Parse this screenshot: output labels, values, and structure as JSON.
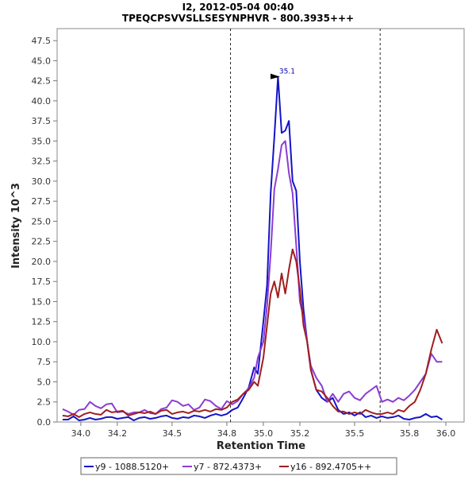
{
  "chart_data": {
    "type": "line",
    "title": "I2, 2012-05-04 00:40",
    "subtitle": "TPEQCPSVVSLLSESYNPHVR - 800.3935+++",
    "xlabel": "Retention Time",
    "ylabel": "Intensity 10^3",
    "xlim": [
      33.87,
      36.1
    ],
    "ylim": [
      0,
      49
    ],
    "xticks": [
      34.0,
      34.2,
      34.5,
      34.8,
      35.0,
      35.2,
      35.5,
      35.8,
      36.0
    ],
    "xtick_labels": [
      "34.0",
      "34.2",
      "34.5",
      "34.8",
      "35.0",
      "35.2",
      "35.5",
      "35.8",
      "36.0"
    ],
    "yticks": [
      0,
      2.5,
      5,
      7.5,
      10,
      12.5,
      15,
      17.5,
      20,
      22.5,
      25,
      27.5,
      30,
      32.5,
      35,
      37.5,
      40,
      42.5,
      45,
      47.5
    ],
    "ytick_labels": [
      "0.0",
      "2.5",
      "5.0",
      "7.5",
      "10.0",
      "12.5",
      "15.0",
      "17.5",
      "20.0",
      "22.5",
      "25.0",
      "27.5",
      "30.0",
      "32.5",
      "35.0",
      "37.5",
      "40.0",
      "42.5",
      "45.0",
      "47.5"
    ],
    "boundaries": [
      34.82,
      35.64
    ],
    "peak_annotation": {
      "x": 35.1,
      "y": 43.0,
      "text": "35.1"
    },
    "series": [
      {
        "name": "y9 - 1088.5120+",
        "color": "#1414c8",
        "x": [
          33.9,
          33.93,
          33.96,
          33.99,
          34.02,
          34.05,
          34.08,
          34.11,
          34.14,
          34.17,
          34.2,
          34.23,
          34.26,
          34.29,
          34.32,
          34.35,
          34.38,
          34.41,
          34.44,
          34.47,
          34.5,
          34.53,
          34.56,
          34.59,
          34.62,
          34.65,
          34.68,
          34.71,
          34.74,
          34.77,
          34.8,
          34.83,
          34.86,
          34.89,
          34.92,
          34.95,
          34.97,
          35.0,
          35.02,
          35.04,
          35.06,
          35.08,
          35.1,
          35.12,
          35.14,
          35.16,
          35.18,
          35.2,
          35.22,
          35.24,
          35.26,
          35.29,
          35.32,
          35.35,
          35.38,
          35.41,
          35.44,
          35.47,
          35.5,
          35.53,
          35.56,
          35.59,
          35.62,
          35.65,
          35.68,
          35.71,
          35.74,
          35.77,
          35.8,
          35.83,
          35.86,
          35.89,
          35.92,
          35.95,
          35.98
        ],
        "values": [
          0.3,
          0.3,
          0.7,
          0.2,
          0.3,
          0.5,
          0.3,
          0.4,
          0.6,
          0.6,
          0.4,
          0.5,
          0.6,
          0.2,
          0.5,
          0.6,
          0.4,
          0.5,
          0.7,
          0.8,
          0.5,
          0.4,
          0.6,
          0.5,
          0.8,
          0.7,
          0.5,
          0.8,
          1.0,
          0.8,
          1.0,
          1.5,
          1.8,
          3.0,
          4.3,
          6.8,
          6.0,
          12.5,
          17.0,
          28.5,
          35.5,
          43.0,
          36.0,
          36.3,
          37.5,
          30.0,
          28.8,
          20.0,
          14.0,
          10.0,
          6.5,
          4.0,
          3.0,
          2.5,
          3.0,
          1.5,
          1.0,
          1.2,
          0.8,
          1.2,
          0.6,
          0.8,
          0.5,
          0.7,
          0.5,
          0.6,
          0.8,
          0.4,
          0.3,
          0.5,
          0.6,
          1.0,
          0.6,
          0.7,
          0.3
        ]
      },
      {
        "name": "y7 - 872.4373+",
        "color": "#8c3cd2",
        "x": [
          33.9,
          33.93,
          33.96,
          33.99,
          34.02,
          34.05,
          34.08,
          34.11,
          34.14,
          34.17,
          34.2,
          34.23,
          34.26,
          34.29,
          34.32,
          34.35,
          34.38,
          34.41,
          34.44,
          34.47,
          34.5,
          34.53,
          34.56,
          34.59,
          34.62,
          34.65,
          34.68,
          34.71,
          34.74,
          34.77,
          34.8,
          34.83,
          34.86,
          34.89,
          34.92,
          34.95,
          34.97,
          35.0,
          35.02,
          35.04,
          35.06,
          35.08,
          35.1,
          35.12,
          35.14,
          35.16,
          35.18,
          35.2,
          35.22,
          35.24,
          35.26,
          35.29,
          35.32,
          35.35,
          35.38,
          35.41,
          35.44,
          35.47,
          35.5,
          35.53,
          35.56,
          35.59,
          35.62,
          35.65,
          35.68,
          35.71,
          35.74,
          35.77,
          35.8,
          35.83,
          35.86,
          35.89,
          35.92,
          35.95,
          35.98
        ],
        "values": [
          1.6,
          1.3,
          0.9,
          1.5,
          1.6,
          2.5,
          2.0,
          1.7,
          2.2,
          2.3,
          1.2,
          1.3,
          1.0,
          1.2,
          1.2,
          1.5,
          1.1,
          1.0,
          1.6,
          1.8,
          2.7,
          2.5,
          2.0,
          2.2,
          1.5,
          1.8,
          2.8,
          2.6,
          2.0,
          1.6,
          2.6,
          2.2,
          2.6,
          3.5,
          4.2,
          5.5,
          8.0,
          10.0,
          14.5,
          21.0,
          29.0,
          31.5,
          34.5,
          35.0,
          31.0,
          28.5,
          22.0,
          15.0,
          13.0,
          10.0,
          7.0,
          5.5,
          4.5,
          2.5,
          3.5,
          2.5,
          3.5,
          3.8,
          3.0,
          2.7,
          3.5,
          4.0,
          4.5,
          2.5,
          2.8,
          2.5,
          3.0,
          2.7,
          3.3,
          4.0,
          5.0,
          6.0,
          8.5,
          7.5,
          7.5
        ]
      },
      {
        "name": "y16 - 892.4705++",
        "color": "#a01e1e",
        "x": [
          33.9,
          33.93,
          33.96,
          33.99,
          34.02,
          34.05,
          34.08,
          34.11,
          34.14,
          34.17,
          34.2,
          34.23,
          34.26,
          34.29,
          34.32,
          34.35,
          34.38,
          34.41,
          34.44,
          34.47,
          34.5,
          34.53,
          34.56,
          34.59,
          34.62,
          34.65,
          34.68,
          34.71,
          34.74,
          34.77,
          34.8,
          34.83,
          34.86,
          34.89,
          34.92,
          34.95,
          34.97,
          35.0,
          35.02,
          35.04,
          35.06,
          35.08,
          35.1,
          35.12,
          35.14,
          35.16,
          35.18,
          35.2,
          35.22,
          35.24,
          35.26,
          35.29,
          35.32,
          35.35,
          35.38,
          35.41,
          35.44,
          35.47,
          35.5,
          35.53,
          35.56,
          35.59,
          35.62,
          35.65,
          35.68,
          35.71,
          35.74,
          35.77,
          35.8,
          35.83,
          35.86,
          35.89,
          35.92,
          35.95,
          35.98
        ],
        "values": [
          0.8,
          0.7,
          1.0,
          0.6,
          1.0,
          1.2,
          1.0,
          0.9,
          1.5,
          1.2,
          1.3,
          1.4,
          0.8,
          1.0,
          1.2,
          1.1,
          1.3,
          1.0,
          1.4,
          1.5,
          1.0,
          1.2,
          1.3,
          1.1,
          1.4,
          1.3,
          1.5,
          1.3,
          1.6,
          1.5,
          1.8,
          2.5,
          2.8,
          3.5,
          4.0,
          5.0,
          4.5,
          8.0,
          12.0,
          16.0,
          17.5,
          15.5,
          18.5,
          16.0,
          19.0,
          21.5,
          20.0,
          16.5,
          12.0,
          10.0,
          6.5,
          4.0,
          3.8,
          3.0,
          2.0,
          1.3,
          1.3,
          1.0,
          1.2,
          1.0,
          1.5,
          1.2,
          1.0,
          1.0,
          1.2,
          1.0,
          1.5,
          1.3,
          2.0,
          2.5,
          4.0,
          6.0,
          9.0,
          11.5,
          9.8
        ]
      }
    ]
  }
}
